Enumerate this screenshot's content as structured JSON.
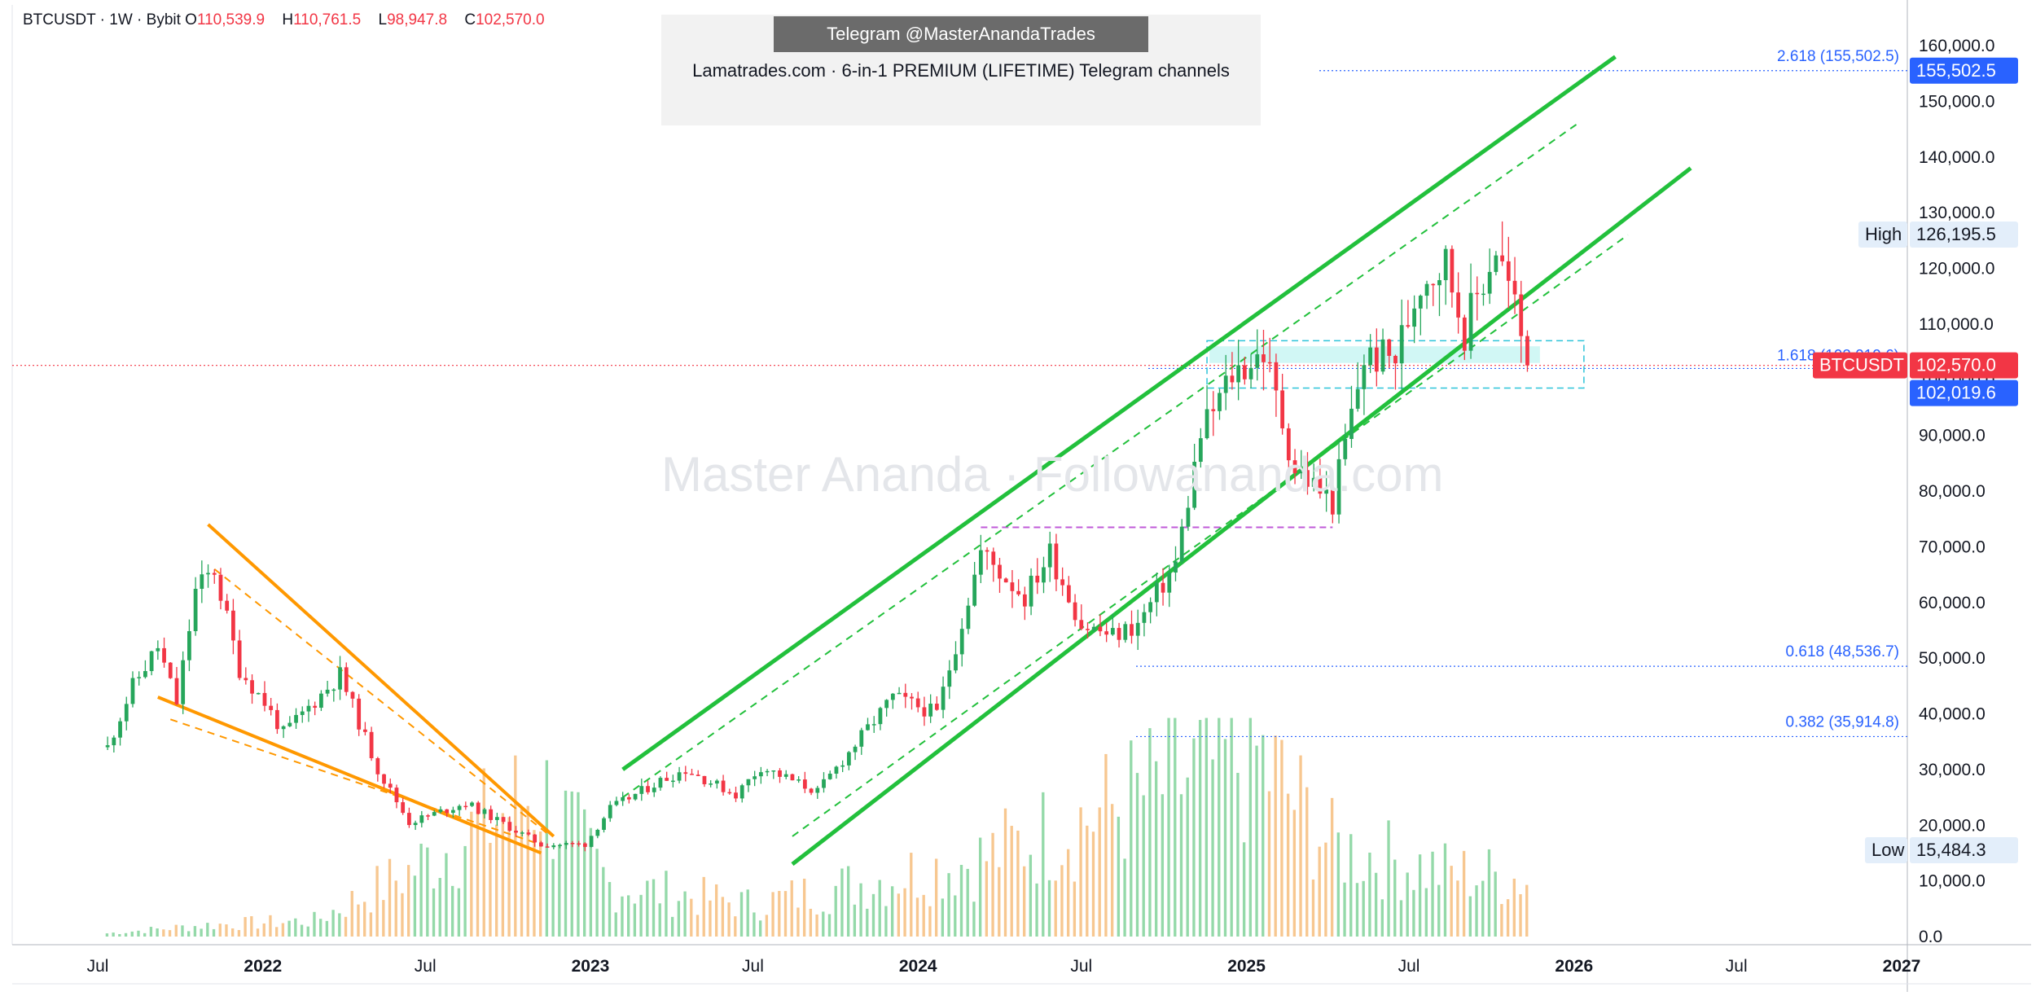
{
  "header": {
    "symbol_line": "BTCUSDT · 1W · Bybit",
    "open_label": "O",
    "open": "110,539.9",
    "high_label": "H",
    "high": "110,761.5",
    "low_label": "L",
    "low": "98,947.8",
    "close_label": "C",
    "close": "102,570.0"
  },
  "banner": {
    "telegram": "Telegram @MasterAnandaTrades",
    "promo": "Lamatrades.com · 6-in-1 PREMIUM (LIFETIME) Telegram channels"
  },
  "watermark": "Master Ananda · Followananda.com",
  "colors": {
    "up": "#26a65b",
    "down": "#f23645",
    "channel": "#22c03c",
    "wedge": "#ff9800",
    "fib": "#2962ff",
    "price_tag": "#f23645",
    "fib_tag": "#2962ff",
    "zone": "#2dc4d9",
    "support": "#c05bd8"
  },
  "chart_data": {
    "type": "candlestick",
    "symbol": "BTCUSDT",
    "interval": "1W",
    "exchange": "Bybit",
    "ylim": [
      0,
      160000
    ],
    "y_ticks": [
      "160,000.0",
      "150,000.0",
      "140,000.0",
      "130,000.0",
      "120,000.0",
      "110,000.0",
      "100,000.0",
      "90,000.0",
      "80,000.0",
      "70,000.0",
      "60,000.0",
      "50,000.0",
      "40,000.0",
      "30,000.0",
      "20,000.0",
      "10,000.0",
      "0.0"
    ],
    "y_tick_values": [
      160000,
      150000,
      140000,
      130000,
      120000,
      110000,
      100000,
      90000,
      80000,
      70000,
      60000,
      50000,
      40000,
      30000,
      20000,
      10000,
      0
    ],
    "x_ticks": [
      "Jul",
      "2022",
      "Jul",
      "2023",
      "Jul",
      "2024",
      "Jul",
      "2025",
      "Jul",
      "2026",
      "Jul",
      "2027"
    ],
    "x_tick_dates": [
      "2021-07-01",
      "2022-01-01",
      "2022-07-01",
      "2023-01-01",
      "2023-07-01",
      "2024-01-01",
      "2024-07-01",
      "2025-01-01",
      "2025-07-01",
      "2026-01-01",
      "2026-07-01",
      "2027-01-01"
    ],
    "price_path": [
      [
        "2021-07-12",
        34000
      ],
      [
        "2021-08-09",
        45000
      ],
      [
        "2021-09-06",
        52000
      ],
      [
        "2021-09-27",
        42000
      ],
      [
        "2021-10-18",
        62000
      ],
      [
        "2021-11-08",
        66000
      ],
      [
        "2021-12-06",
        48000
      ],
      [
        "2022-01-03",
        42000
      ],
      [
        "2022-01-24",
        36500
      ],
      [
        "2022-03-28",
        47000
      ],
      [
        "2022-05-09",
        30000
      ],
      [
        "2022-06-13",
        20500
      ],
      [
        "2022-08-15",
        24000
      ],
      [
        "2022-11-07",
        16500
      ],
      [
        "2022-12-26",
        16600
      ],
      [
        "2023-01-23",
        23000
      ],
      [
        "2023-03-20",
        28000
      ],
      [
        "2023-04-17",
        30000
      ],
      [
        "2023-06-12",
        25500
      ],
      [
        "2023-07-10",
        30500
      ],
      [
        "2023-09-11",
        26000
      ],
      [
        "2023-10-23",
        34500
      ],
      [
        "2023-12-04",
        43000
      ],
      [
        "2024-01-22",
        40000
      ],
      [
        "2024-03-11",
        69000
      ],
      [
        "2024-04-29",
        61000
      ],
      [
        "2024-05-27",
        69000
      ],
      [
        "2024-07-01",
        56000
      ],
      [
        "2024-08-05",
        54000
      ],
      [
        "2024-09-02",
        56000
      ],
      [
        "2024-10-14",
        67000
      ],
      [
        "2024-11-11",
        90000
      ],
      [
        "2024-12-16",
        101000
      ],
      [
        "2025-01-20",
        105000
      ],
      [
        "2025-02-24",
        84000
      ],
      [
        "2025-04-07",
        78000
      ],
      [
        "2025-05-12",
        104000
      ],
      [
        "2025-06-16",
        104000
      ],
      [
        "2025-07-14",
        118000
      ],
      [
        "2025-08-11",
        121000
      ],
      [
        "2025-09-01",
        109000
      ],
      [
        "2025-10-06",
        124000
      ],
      [
        "2025-10-27",
        113000
      ],
      [
        "2025-11-10",
        102570
      ]
    ],
    "volume_path": [
      [
        "2021-07-12",
        500
      ],
      [
        "2021-11-01",
        1800
      ],
      [
        "2022-03-01",
        2500
      ],
      [
        "2022-06-13",
        10000
      ],
      [
        "2022-11-07",
        23000
      ],
      [
        "2023-01-23",
        8000
      ],
      [
        "2023-07-01",
        5000
      ],
      [
        "2024-03-11",
        12000
      ],
      [
        "2024-08-05",
        20000
      ],
      [
        "2024-11-18",
        26000
      ],
      [
        "2025-01-13",
        28000
      ],
      [
        "2025-04-07",
        14000
      ],
      [
        "2025-08-11",
        10000
      ],
      [
        "2025-11-10",
        9000
      ]
    ],
    "levels": {
      "high": {
        "label": "High",
        "value": "126,195.5"
      },
      "low": {
        "label": "Low",
        "value": "15,484.3"
      },
      "last_price": {
        "symbol": "BTCUSDT",
        "value": "102,570.0"
      },
      "fib_1618": {
        "label": "1.618 (102,019.6)",
        "tag": "102,019.6",
        "value": 102019.6
      },
      "fib_2618": {
        "label": "2.618 (155,502.5)",
        "tag": "155,502.5",
        "value": 155502.5
      },
      "fib_0618": {
        "label": "0.618 (48,536.7)",
        "value": 48536.7
      },
      "fib_0382": {
        "label": "0.382 (35,914.8)",
        "value": 35914.8
      },
      "support_dash": {
        "value": 73500,
        "from": "2024-03-11",
        "to": "2025-04-07"
      }
    },
    "channel": {
      "upper": [
        [
          "2023-02-06",
          30000
        ],
        [
          "2026-02-16",
          158000
        ]
      ],
      "lower": [
        [
          "2023-08-14",
          13000
        ],
        [
          "2026-05-11",
          138000
        ]
      ],
      "inner_upper": [
        [
          "2023-02-06",
          25000
        ],
        [
          "2026-01-05",
          146000
        ]
      ],
      "inner_lower": [
        [
          "2023-08-14",
          18000
        ],
        [
          "2026-03-02",
          126000
        ]
      ]
    },
    "wedge": {
      "upper": [
        [
          "2021-11-01",
          74000
        ],
        [
          "2022-11-21",
          18000
        ]
      ],
      "lower": [
        [
          "2021-09-06",
          43000
        ],
        [
          "2022-11-07",
          15000
        ]
      ],
      "dash_upper": [
        [
          "2021-11-08",
          66000
        ],
        [
          "2022-11-14",
          18500
        ]
      ],
      "dash_lower": [
        [
          "2021-09-20",
          39000
        ],
        [
          "2022-11-07",
          16500
        ]
      ]
    },
    "zone": {
      "from": "2024-11-18",
      "to": "2026-01-12",
      "ymin": 98500,
      "ymax": 107000,
      "inner_min": 103000,
      "inner_max": 106000
    }
  }
}
